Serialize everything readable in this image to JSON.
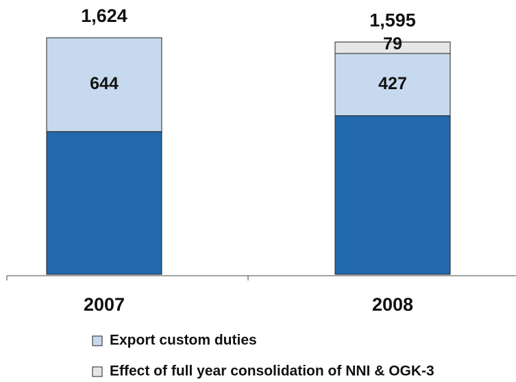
{
  "chart_data": {
    "type": "stacked_bar",
    "categories": [
      "2007",
      "2008"
    ],
    "series": [
      {
        "color": "#2369ae",
        "values": [
          980,
          1089
        ]
      },
      {
        "name": "Export custom duties",
        "color": "#c6d9ee",
        "values": [
          644,
          427
        ]
      },
      {
        "name": "Effect of full year consolidation of NNI & OGK-3",
        "color": "#e6e6e6",
        "values": [
          0,
          79
        ]
      }
    ],
    "totals": [
      1624,
      1595
    ],
    "total_labels": [
      "1,624",
      "1,595"
    ],
    "ylim": [
      0,
      1650
    ],
    "legend": "bottom"
  }
}
